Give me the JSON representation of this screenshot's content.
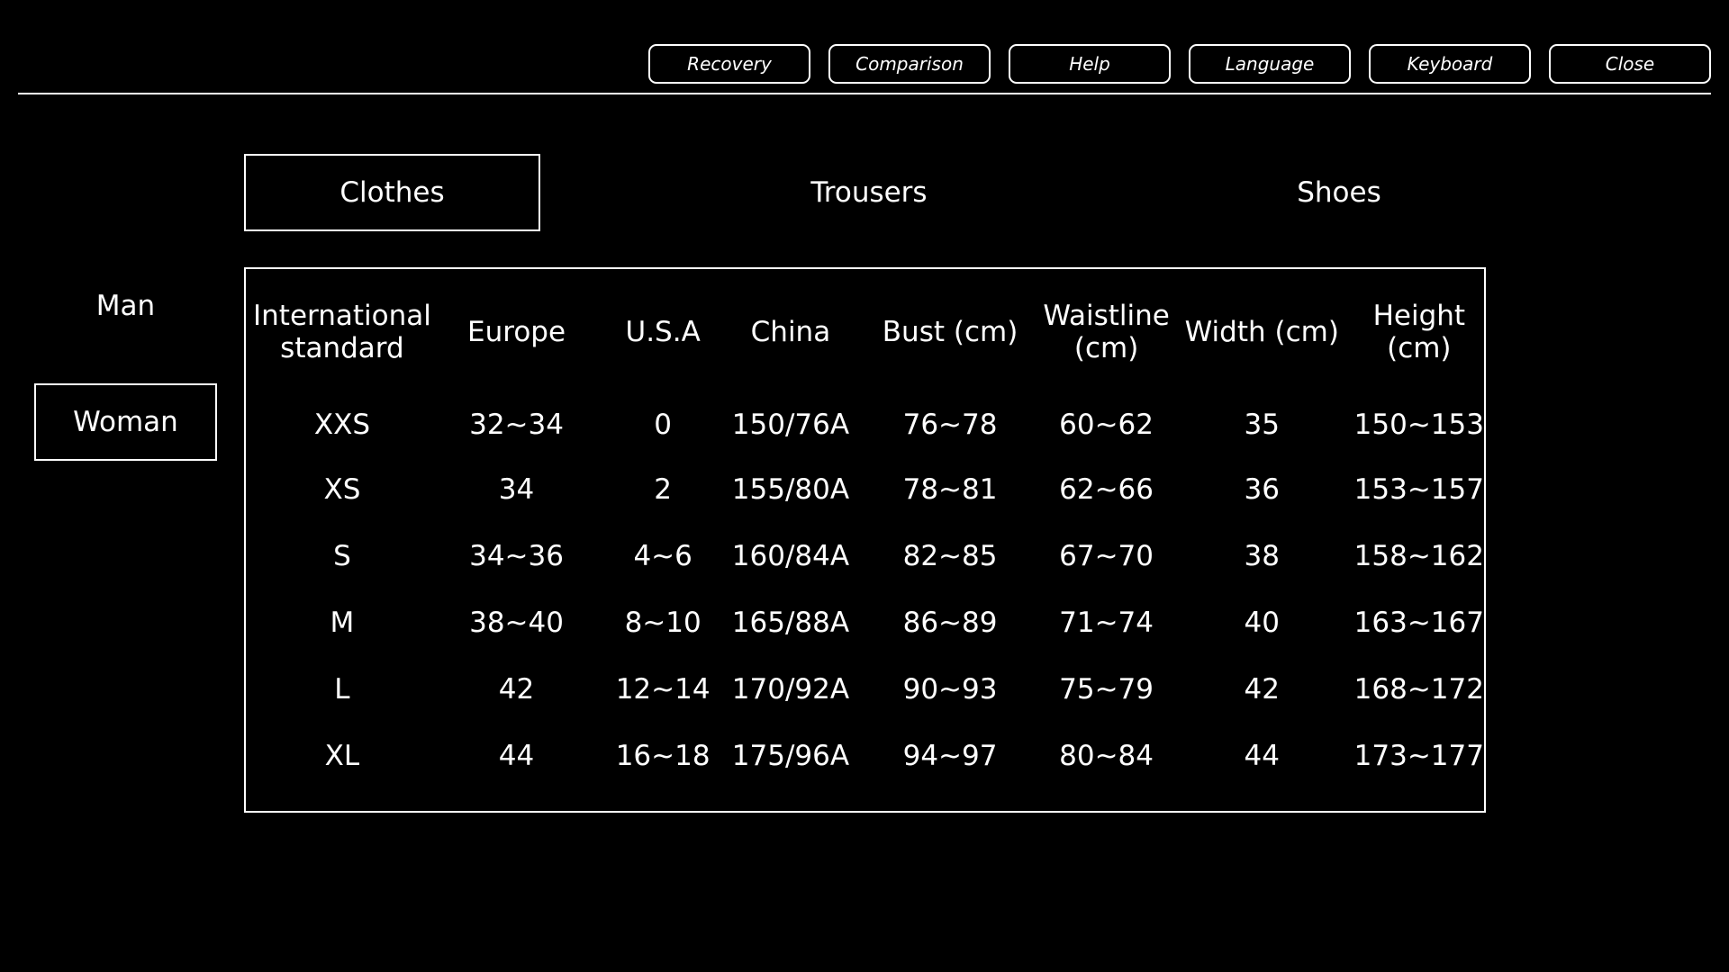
{
  "toolbar": {
    "buttons": [
      "Recovery",
      "Comparison",
      "Help",
      "Language",
      "Keyboard",
      "Close"
    ]
  },
  "categories": {
    "items": [
      "Clothes",
      "Trousers",
      "Shoes"
    ],
    "selected": "Clothes"
  },
  "gender": {
    "items": [
      "Man",
      "Woman"
    ],
    "selected": "Woman"
  },
  "size_table": {
    "headers": [
      "International standard",
      "Europe",
      "U.S.A",
      "China",
      "Bust (cm)",
      "Waistline (cm)",
      "Width (cm)",
      "Height (cm)"
    ],
    "rows": [
      [
        "XXS",
        "32~34",
        "0",
        "150/76A",
        "76~78",
        "60~62",
        "35",
        "150~153"
      ],
      [
        "XS",
        "34",
        "2",
        "155/80A",
        "78~81",
        "62~66",
        "36",
        "153~157"
      ],
      [
        "S",
        "34~36",
        "4~6",
        "160/84A",
        "82~85",
        "67~70",
        "38",
        "158~162"
      ],
      [
        "M",
        "38~40",
        "8~10",
        "165/88A",
        "86~89",
        "71~74",
        "40",
        "163~167"
      ],
      [
        "L",
        "42",
        "12~14",
        "170/92A",
        "90~93",
        "75~79",
        "42",
        "168~172"
      ],
      [
        "XL",
        "44",
        "16~18",
        "175/96A",
        "94~97",
        "80~84",
        "44",
        "173~177"
      ]
    ]
  }
}
